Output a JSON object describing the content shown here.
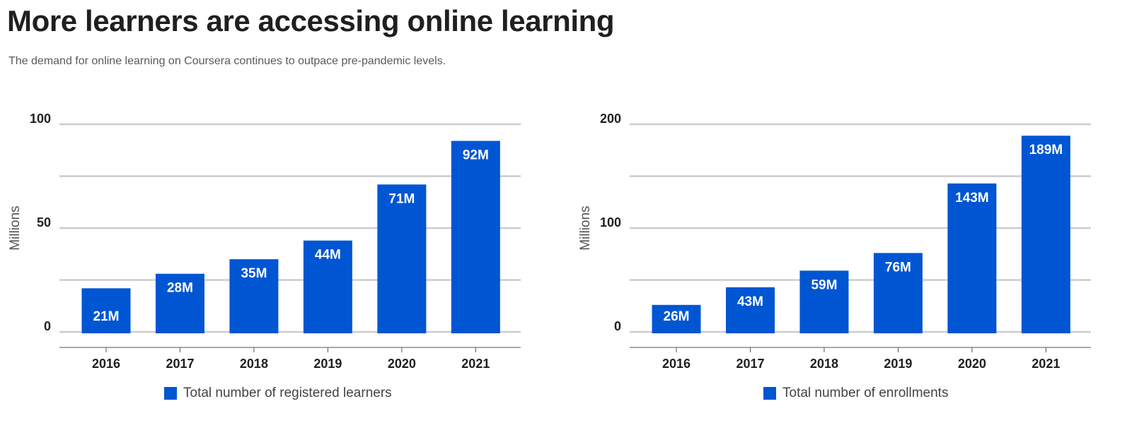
{
  "page": {
    "title": "More learners are accessing online learning",
    "subtitle": "The demand for online learning on Coursera continues to outpace pre-pandemic levels."
  },
  "colors": {
    "bar": "#0056d2",
    "grid": "#cccccc",
    "axis": "#555555",
    "text": "#1f1f1f"
  },
  "chart_data": [
    {
      "type": "bar",
      "categories": [
        "2016",
        "2017",
        "2018",
        "2019",
        "2020",
        "2021"
      ],
      "values": [
        21,
        28,
        35,
        44,
        71,
        92
      ],
      "labels": [
        "21M",
        "28M",
        "35M",
        "44M",
        "71M",
        "92M"
      ],
      "ylabel": "Millions",
      "ylim": [
        0,
        100
      ],
      "yticks": [
        0,
        50,
        100
      ],
      "gridlines": [
        0,
        25,
        50,
        75,
        100
      ],
      "legend": "Total number of registered learners",
      "grid": true
    },
    {
      "type": "bar",
      "categories": [
        "2016",
        "2017",
        "2018",
        "2019",
        "2020",
        "2021"
      ],
      "values": [
        26,
        43,
        59,
        76,
        143,
        189
      ],
      "labels": [
        "26M",
        "43M",
        "59M",
        "76M",
        "143M",
        "189M"
      ],
      "ylabel": "Millions",
      "ylim": [
        0,
        200
      ],
      "yticks": [
        0,
        100,
        200
      ],
      "gridlines": [
        0,
        50,
        100,
        150,
        200
      ],
      "legend": "Total number of enrollments",
      "grid": true
    }
  ]
}
